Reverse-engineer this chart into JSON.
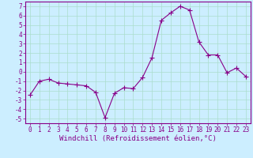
{
  "x": [
    0,
    1,
    2,
    3,
    4,
    5,
    6,
    7,
    8,
    9,
    10,
    11,
    12,
    13,
    14,
    15,
    16,
    17,
    18,
    19,
    20,
    21,
    22,
    23
  ],
  "y": [
    -2.5,
    -1.0,
    -0.8,
    -1.2,
    -1.3,
    -1.4,
    -1.5,
    -2.2,
    -4.9,
    -2.3,
    -1.7,
    -1.8,
    -0.6,
    1.5,
    5.5,
    6.3,
    7.0,
    6.6,
    3.2,
    1.8,
    1.8,
    -0.1,
    0.4,
    -0.5
  ],
  "line_color": "#880088",
  "marker": "+",
  "marker_size": 4,
  "bg_color": "#cceeff",
  "grid_color": "#aaddcc",
  "xlabel": "Windchill (Refroidissement éolien,°C)",
  "xlim": [
    -0.5,
    23.5
  ],
  "ylim": [
    -5.5,
    7.5
  ],
  "yticks": [
    -5,
    -4,
    -3,
    -2,
    -1,
    0,
    1,
    2,
    3,
    4,
    5,
    6,
    7
  ],
  "xticks": [
    0,
    1,
    2,
    3,
    4,
    5,
    6,
    7,
    8,
    9,
    10,
    11,
    12,
    13,
    14,
    15,
    16,
    17,
    18,
    19,
    20,
    21,
    22,
    23
  ],
  "tick_color": "#880088",
  "tick_labelsize": 5.5,
  "xlabel_fontsize": 6.5,
  "spine_color": "#880088",
  "linewidth": 0.8,
  "markeredgewidth": 0.8
}
